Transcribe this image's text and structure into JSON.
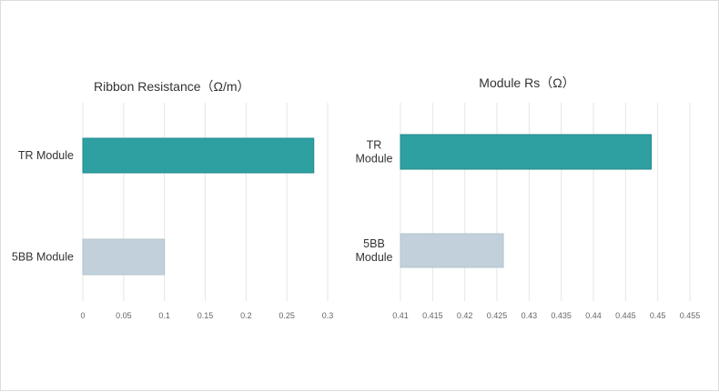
{
  "chart_data": [
    {
      "type": "bar",
      "orientation": "horizontal",
      "title": "Ribbon Resistance（Ω/m）",
      "categories": [
        "TR Module",
        "5BB Module"
      ],
      "values": [
        0.283,
        0.1
      ],
      "xlim": [
        0,
        0.3
      ],
      "ticks": [
        "0",
        "0.05",
        "0.1",
        "0.15",
        "0.2",
        "0.25",
        "0.3"
      ],
      "colors": [
        "#2ea0a1",
        "#c1d0da"
      ],
      "grid": true
    },
    {
      "type": "bar",
      "orientation": "horizontal",
      "title": "Module Rs（Ω）",
      "categories": [
        "TR\nModule",
        "5BB\nModule"
      ],
      "values": [
        0.449,
        0.426
      ],
      "xlim": [
        0.41,
        0.455
      ],
      "ticks": [
        "0.41",
        "0.415",
        "0.42",
        "0.425",
        "0.43",
        "0.435",
        "0.44",
        "0.445",
        "0.45",
        "0.455"
      ],
      "colors": [
        "#2ea0a1",
        "#c1d0da"
      ],
      "grid": true
    }
  ]
}
